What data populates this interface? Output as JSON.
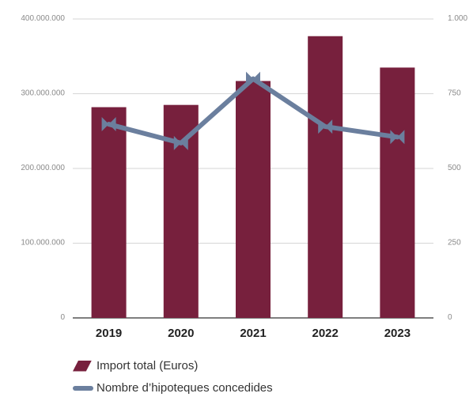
{
  "chart_data": {
    "type": "bar",
    "categories": [
      "2019",
      "2020",
      "2021",
      "2022",
      "2023"
    ],
    "series": [
      {
        "name": "Import total (Euros)",
        "type": "bar",
        "axis": "left",
        "color": "#77203d",
        "values": [
          282000000,
          285000000,
          317000000,
          377000000,
          335000000
        ]
      },
      {
        "name": "Nombre d’hipoteques concedides",
        "type": "line",
        "axis": "right",
        "color": "#6b7f9e",
        "values": [
          648,
          585,
          800,
          640,
          605
        ]
      }
    ],
    "left_axis": {
      "ticks": [
        "0",
        "100.000.000",
        "200.000.000",
        "300.000.000",
        "400.000.000"
      ],
      "tick_values": [
        0,
        100000000,
        200000000,
        300000000,
        400000000
      ],
      "ylim": [
        0,
        400000000
      ]
    },
    "right_axis": {
      "ticks": [
        "0",
        "250",
        "500",
        "750",
        "1.000"
      ],
      "tick_values": [
        0,
        250,
        500,
        750,
        1000
      ],
      "ylim": [
        0,
        1000
      ]
    },
    "grid": true,
    "legend_position": "bottom-left"
  }
}
